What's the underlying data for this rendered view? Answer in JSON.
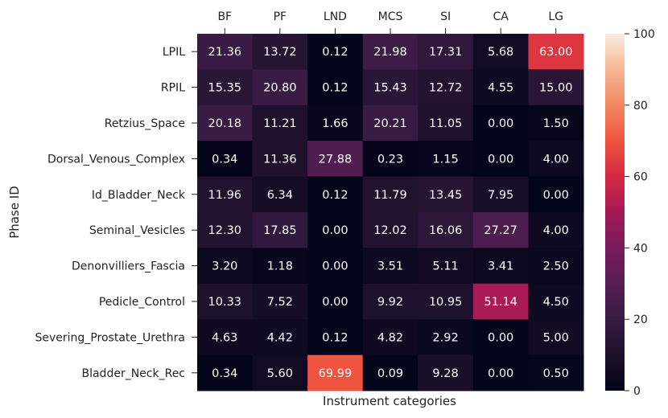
{
  "chart_data": {
    "type": "heatmap",
    "title": "",
    "xlabel": "Instrument categories",
    "ylabel": "Phase ID",
    "x_categories": [
      "BF",
      "PF",
      "LND",
      "MCS",
      "SI",
      "CA",
      "LG"
    ],
    "y_categories": [
      "LPIL",
      "RPIL",
      "Retzius_Space",
      "Dorsal_Venous_Complex",
      "Id_Bladder_Neck",
      "Seminal_Vesicles",
      "Denonvilliers_Fascia",
      "Pedicle_Control",
      "Severing_Prostate_Urethra",
      "Bladder_Neck_Rec"
    ],
    "values": [
      [
        21.36,
        13.72,
        0.12,
        21.98,
        17.31,
        5.68,
        63.0
      ],
      [
        15.35,
        20.8,
        0.12,
        15.43,
        12.72,
        4.55,
        15.0
      ],
      [
        20.18,
        11.21,
        1.66,
        20.21,
        11.05,
        0.0,
        1.5
      ],
      [
        0.34,
        11.36,
        27.88,
        0.23,
        1.15,
        0.0,
        4.0
      ],
      [
        11.96,
        6.34,
        0.12,
        11.79,
        13.45,
        7.95,
        0.0
      ],
      [
        12.3,
        17.85,
        0.0,
        12.02,
        16.06,
        27.27,
        4.0
      ],
      [
        3.2,
        1.18,
        0.0,
        3.51,
        5.11,
        3.41,
        2.5
      ],
      [
        10.33,
        7.52,
        0.0,
        9.92,
        10.95,
        51.14,
        4.5
      ],
      [
        4.63,
        4.42,
        0.12,
        4.82,
        2.92,
        0.0,
        5.0
      ],
      [
        0.34,
        5.6,
        69.99,
        0.09,
        9.28,
        0.0,
        0.5
      ]
    ],
    "colorbar": {
      "range": [
        0,
        100
      ],
      "ticks": [
        0,
        20,
        40,
        60,
        80,
        100
      ],
      "colormap": "rocket"
    },
    "x_tick_position": "top",
    "legend": "colorbar-right"
  }
}
